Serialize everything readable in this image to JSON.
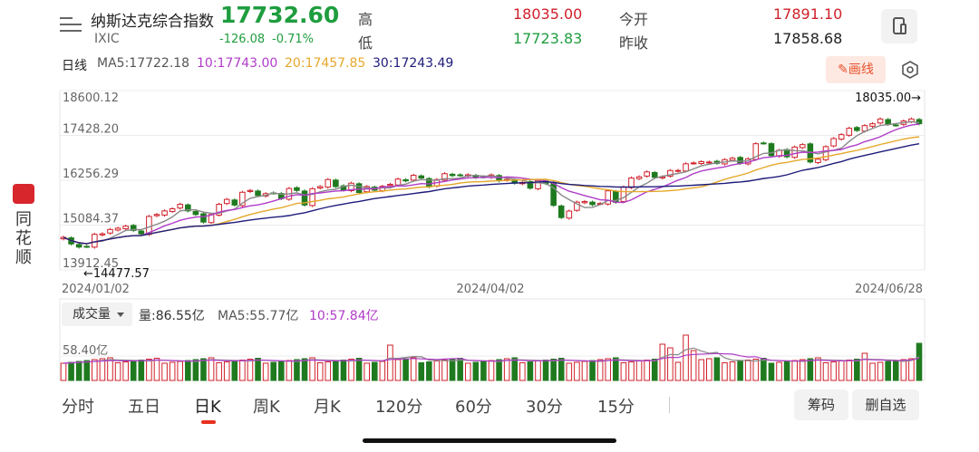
{
  "header": {
    "name": "纳斯达克综合指数",
    "code": "IXIC",
    "price": "17732.60",
    "change": "-126.08",
    "change_pct": "-0.71%",
    "high_label": "高",
    "high": "18035.00",
    "low_label": "低",
    "low": "17723.83",
    "open_label": "今开",
    "open": "17891.10",
    "prev_close_label": "昨收",
    "prev_close": "17858.68"
  },
  "ma_bar": {
    "period": "日线",
    "ma5": "MA5:17722.18",
    "ma10": "10:17743.00",
    "ma20": "20:17457.85",
    "ma30": "30:17243.49",
    "draw_label": "画线"
  },
  "sidebar": {
    "brand": "同花顺"
  },
  "volume": {
    "select_label": "成交量",
    "vol": "量:86.55亿",
    "ma5": "MA5:55.77亿",
    "ma10": "10:57.84亿",
    "axis_label": "58.40亿"
  },
  "tabs": [
    "分时",
    "五日",
    "日K",
    "周K",
    "月K",
    "120分",
    "60分",
    "30分",
    "15分"
  ],
  "active_tab": "日K",
  "buttons": {
    "chips": "筹码",
    "remove_watch": "删自选"
  },
  "colors": {
    "up": "#d0202a",
    "down": "#1f7a1f",
    "ma5": "#888888",
    "ma10": "#b03cc8",
    "ma20": "#e5a82a",
    "ma30": "#1e1c7a",
    "price_down": "#1f9d3f"
  },
  "chart_data": {
    "type": "candlestick",
    "x_labels": [
      "2024/01/02",
      "2024/04/02",
      "2024/06/28"
    ],
    "y_ticks": [
      "18600.12",
      "17428.20",
      "16256.29",
      "15084.37",
      "13912.45"
    ],
    "ylim": [
      13912.45,
      18600.12
    ],
    "annotations": {
      "max": "18035.00→",
      "min": "←14477.57"
    },
    "closes": [
      14765,
      14592,
      14510,
      14524,
      14843,
      14857,
      14970,
      15003,
      15055,
      14944,
      14855,
      15311,
      15361,
      15455,
      15510,
      15628,
      15455,
      15360,
      15164,
      15361,
      15628,
      15756,
      15609,
      15942,
      15990,
      15859,
      15906,
      15925,
      15775,
      16041,
      15990,
      15610,
      16035,
      16092,
      16275,
      16091,
      15999,
      16180,
      15936,
      16092,
      15997,
      16099,
      16149,
      16286,
      16240,
      16385,
      16315,
      16085,
      16274,
      16428,
      16378,
      16384,
      16399,
      16328,
      16342,
      16395,
      16241,
      16277,
      16181,
      16200,
      16050,
      16250,
      16170,
      15600,
      15282,
      15451,
      15684,
      15700,
      15620,
      15650,
      15980,
      15680,
      16080,
      16315,
      16346,
      16474,
      16332,
      16345,
      16511,
      16513,
      16686,
      16709,
      16742,
      16732,
      16698,
      16795,
      16833,
      16699,
      16817,
      17211,
      17227,
      16900,
      17038,
      16869,
      17124,
      17187,
      16734,
      16808,
      17134,
      17346,
      17448,
      17615,
      17557,
      17684,
      17733,
      17858,
      17717,
      17697,
      17804,
      17858,
      17733
    ],
    "ma_last": {
      "ma5": 17722.18,
      "ma10": 17743.0,
      "ma20": 17457.85,
      "ma30": 17243.49
    }
  }
}
